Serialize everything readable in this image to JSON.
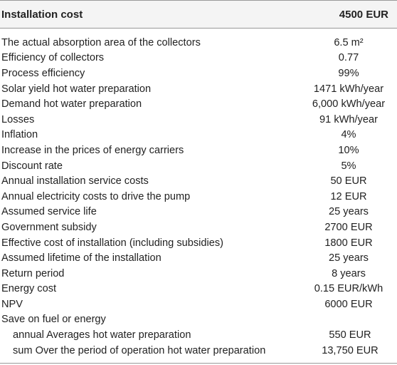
{
  "table": {
    "header": [
      "Installation cost",
      "4500 EUR"
    ],
    "rows": [
      [
        "The actual absorption area of the collectors",
        "6.5 m²"
      ],
      [
        "Efficiency of collectors",
        "0.77"
      ],
      [
        "Process efficiency",
        "99%"
      ],
      [
        "Solar yield hot water preparation",
        "1471 kWh/year"
      ],
      [
        "Demand hot water preparation",
        "6,000 kWh/year"
      ],
      [
        "Losses",
        "91 kWh/year"
      ],
      [
        "Inflation",
        "4%"
      ],
      [
        "Increase in the prices of energy carriers",
        "10%"
      ],
      [
        "Discount rate",
        "5%"
      ],
      [
        "Annual installation service costs",
        "50 EUR"
      ],
      [
        "Annual electricity costs to drive the pump",
        "12 EUR"
      ],
      [
        "Assumed service life",
        "25 years"
      ],
      [
        "Government subsidy",
        "2700 EUR"
      ],
      [
        "Effective cost of installation (including subsidies)",
        "1800 EUR"
      ],
      [
        "Assumed lifetime of the installation",
        "25 years"
      ],
      [
        "Return period",
        "8 years"
      ],
      [
        "Energy cost",
        "0.15 EUR/kWh"
      ],
      [
        "NPV",
        "6000 EUR"
      ]
    ],
    "group": {
      "label": "Save on fuel or energy",
      "rows": [
        [
          "annual Averages hot water preparation",
          "550 EUR"
        ],
        [
          "sum Over the period of operation hot water preparation",
          "13,750 EUR"
        ]
      ]
    }
  }
}
